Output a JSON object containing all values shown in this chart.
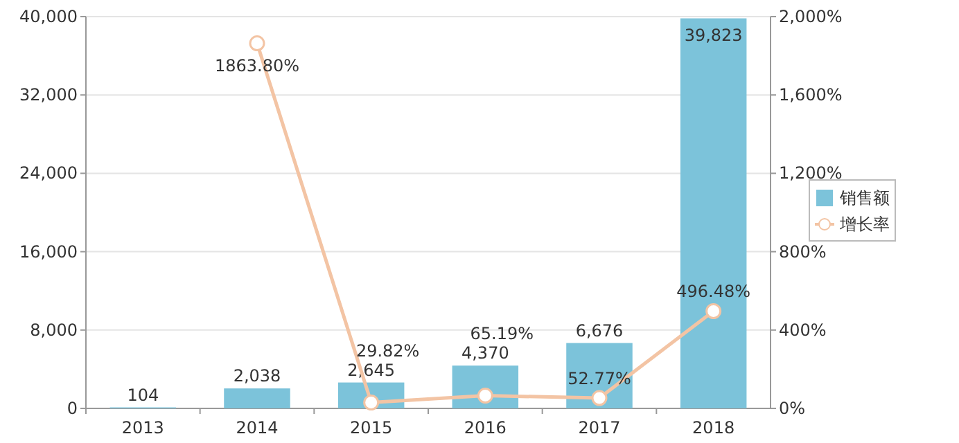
{
  "chart_data": {
    "type": "bar",
    "categories": [
      "2013",
      "2014",
      "2015",
      "2016",
      "2017",
      "2018"
    ],
    "series": [
      {
        "name": "销售额",
        "type": "bar",
        "color": "#7cc3da",
        "values": [
          104,
          2038,
          2645,
          4370,
          6676,
          39823
        ],
        "value_labels": [
          "104",
          "2,038",
          "2,645",
          "4,370",
          "6,676",
          "39,823"
        ]
      },
      {
        "name": "增长率",
        "type": "line",
        "axis": "y2",
        "color": "#f3c4a4",
        "marker": "circle",
        "values": [
          null,
          1863.8,
          29.82,
          65.19,
          52.77,
          496.48
        ],
        "value_labels": [
          null,
          "1863.80%",
          "29.82%",
          "65.19%",
          "52.77%",
          "496.48%"
        ]
      }
    ],
    "ylim": [
      0,
      40000
    ],
    "yticks": [
      0,
      {
        "value": 8000,
        "label": "8,000"
      },
      {
        "value": 16000,
        "label": "16,000"
      },
      {
        "value": 24000,
        "label": "24,000"
      },
      {
        "value": 32000,
        "label": "32,000"
      },
      {
        "value": 40000,
        "label": "40,000"
      }
    ],
    "y2lim": [
      0,
      2000
    ],
    "y2ticks": [
      {
        "value": 0,
        "label": "0%"
      },
      {
        "value": 400,
        "label": "400%"
      },
      {
        "value": 800,
        "label": "800%"
      },
      {
        "value": 1200,
        "label": "1,200%"
      },
      {
        "value": 1600,
        "label": "1,600%"
      },
      {
        "value": 2000,
        "label": "2,000%"
      }
    ],
    "grid": "y",
    "legend": "right"
  }
}
